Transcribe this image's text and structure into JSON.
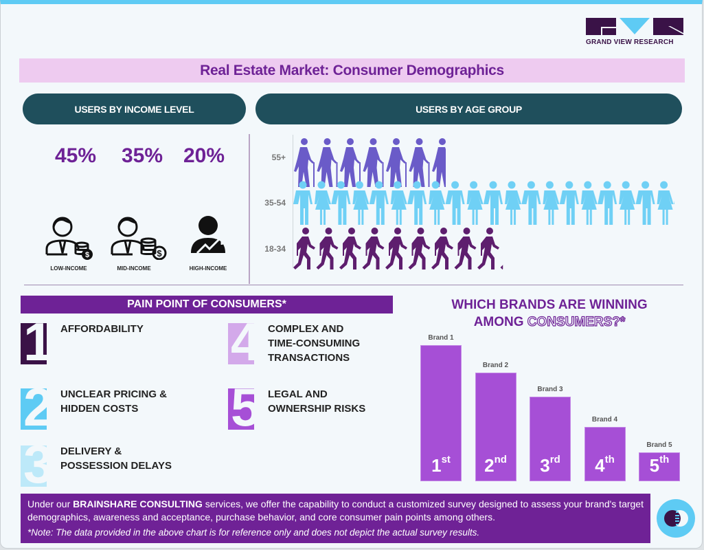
{
  "logo": {
    "text": "GRAND VIEW RESEARCH",
    "colors": {
      "dark": "#3a1247",
      "accent": "#5ecbf4"
    }
  },
  "title": "Real Estate Market: Consumer Demographics",
  "income": {
    "header": "USERS BY INCOME LEVEL",
    "items": [
      {
        "pct": "45%",
        "label": "LOW-INCOME",
        "icon": "businessman-coins-icon"
      },
      {
        "pct": "35%",
        "label": "MID-INCOME",
        "icon": "businessman-coins-icon"
      },
      {
        "pct": "20%",
        "label": "HIGH-INCOME",
        "icon": "person-growth-icon"
      }
    ]
  },
  "age": {
    "header": "USERS BY AGE GROUP"
  },
  "pain": {
    "header": "PAIN POINT OF CONSUMERS*",
    "items": [
      {
        "n": "1",
        "lines": [
          "AFFORDABILITY"
        ],
        "color": "#3a1247"
      },
      {
        "n": "2",
        "lines": [
          "UNCLEAR PRICING &",
          "HIDDEN COSTS"
        ],
        "color": "#5ecbf4"
      },
      {
        "n": "3",
        "lines": [
          "DELIVERY &",
          "POSSESSION DELAYS"
        ],
        "color": "#bde9f9"
      },
      {
        "n": "4",
        "lines": [
          "COMPLEX AND",
          "TIME-CONSUMING",
          "TRANSACTIONS"
        ],
        "color": "#d3a9ea"
      },
      {
        "n": "5",
        "lines": [
          "LEGAL AND",
          "OWNERSHIP RISKS"
        ],
        "color": "#a64fd6"
      }
    ]
  },
  "brands": {
    "title_line1": "WHICH BRANDS ARE WINNING",
    "title_line2a": "AMONG ",
    "title_line2b": "CONSUMERS?*"
  },
  "footer": {
    "pre": "Under our ",
    "bold": "BRAINSHARE CONSULTING",
    "post": " services, we offer the capability to conduct a customized survey designed to assess your brand's target demographics, awareness and acceptance, purchase behavior, and core consumer pain points among others.",
    "note": "*Note: The data provided in the above chart is for reference only and does not depict the actual survey results."
  },
  "chart_data": [
    {
      "type": "bar",
      "title": "",
      "categories": [
        "Brand 1",
        "Brand 2",
        "Brand 3",
        "Brand 4",
        "Brand 5"
      ],
      "rank_labels": [
        [
          "1",
          "st"
        ],
        [
          "2",
          "nd"
        ],
        [
          "3",
          "rd"
        ],
        [
          "4",
          "th"
        ],
        [
          "5",
          "th"
        ]
      ],
      "values": [
        100,
        80,
        62,
        40,
        21
      ],
      "color": "#a64fd6",
      "grid": false
    },
    {
      "type": "bar",
      "orientation": "horizontal-pictogram",
      "categories": [
        "55+",
        "35-54",
        "18-34"
      ],
      "values": [
        40,
        100,
        55
      ],
      "colors": [
        "#6a5bc8",
        "#6fd0f5",
        "#5e1e6e"
      ],
      "icons": [
        "elderly-person-icon",
        "man-woman-icon",
        "walking-person-icon"
      ]
    }
  ]
}
